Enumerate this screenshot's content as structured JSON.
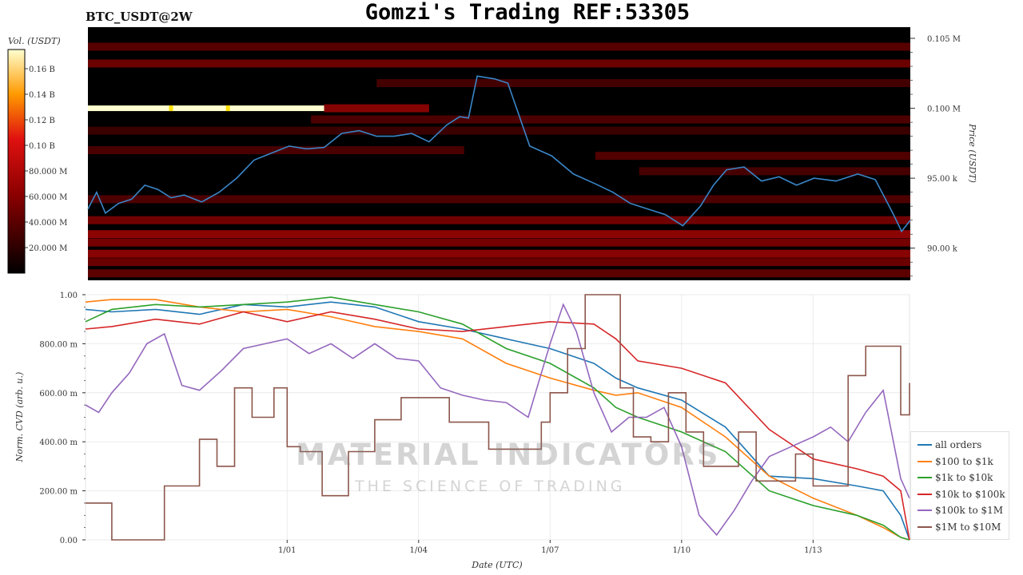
{
  "header": {
    "title": "Gomzi's Trading REF:53305",
    "pair": "BTC_USDT@2W"
  },
  "watermark": {
    "brand": "MATERIAL INDICATORS",
    "tagline": "THE SCIENCE OF TRADING"
  },
  "colors": {
    "price_line": "#3a86c8",
    "all_orders": "#1f77b4",
    "o100_1k": "#ff7f0e",
    "o1k_10k": "#2ca02c",
    "o10k_100k": "#d62728",
    "o100k_1m": "#9467bd",
    "o1m_10m": "#8c564b"
  },
  "chart_data": [
    {
      "type": "heatmap",
      "name": "orderbook-heatmap",
      "colorbar": {
        "label": "Vol. (USDT)",
        "ticks": [
          "0.16 B",
          "0.14 B",
          "0.12 B",
          "0.10 B",
          "80.000 M",
          "60.000 M",
          "40.000 M",
          "20.000 M"
        ],
        "tick_values": [
          160000000,
          140000000,
          120000000,
          100000000,
          80000000,
          60000000,
          40000000,
          20000000
        ],
        "range": [
          0,
          175000000
        ]
      },
      "y_axis": {
        "label": "Price (USDT)",
        "ticks": [
          "0.105 M",
          "0.100 M",
          "95.00 k",
          "90.00 k"
        ],
        "tick_values": [
          105000,
          100000,
          95000,
          90000
        ],
        "range": [
          87700,
          105800
        ]
      },
      "x_range": [
        -4.6,
        14.2
      ],
      "bands": [
        {
          "price": 104400,
          "x0": -4.6,
          "x1": 14.2,
          "vol": 45000000
        },
        {
          "price": 103200,
          "x0": -4.6,
          "x1": 14.2,
          "vol": 55000000
        },
        {
          "price": 101800,
          "x0": 2.0,
          "x1": 14.2,
          "vol": 35000000
        },
        {
          "price": 100000,
          "x0": -4.6,
          "x1": 0.8,
          "vol": 175000000
        },
        {
          "price": 100000,
          "x0": 0.8,
          "x1": 3.2,
          "vol": 70000000
        },
        {
          "price": 99200,
          "x0": 0.5,
          "x1": 14.2,
          "vol": 40000000
        },
        {
          "price": 98400,
          "x0": -4.6,
          "x1": 14.2,
          "vol": 30000000
        },
        {
          "price": 97000,
          "x0": -4.6,
          "x1": 4.0,
          "vol": 38000000
        },
        {
          "price": 96600,
          "x0": 7.0,
          "x1": 14.2,
          "vol": 42000000
        },
        {
          "price": 95500,
          "x0": 8.0,
          "x1": 14.2,
          "vol": 36000000
        },
        {
          "price": 93500,
          "x0": -4.6,
          "x1": 14.2,
          "vol": 40000000
        },
        {
          "price": 92000,
          "x0": -4.6,
          "x1": 14.2,
          "vol": 58000000
        },
        {
          "price": 91000,
          "x0": -4.6,
          "x1": 14.2,
          "vol": 75000000
        },
        {
          "price": 90400,
          "x0": -4.6,
          "x1": 14.2,
          "vol": 60000000
        },
        {
          "price": 89600,
          "x0": -4.6,
          "x1": 14.2,
          "vol": 72000000
        },
        {
          "price": 89000,
          "x0": -4.6,
          "x1": 14.2,
          "vol": 55000000
        },
        {
          "price": 88200,
          "x0": -4.6,
          "x1": 14.2,
          "vol": 48000000
        }
      ],
      "hot_spots": [
        {
          "price": 100000,
          "x": -2.7,
          "vol": 175000000
        },
        {
          "price": 100000,
          "x": -1.4,
          "vol": 150000000
        }
      ],
      "price_series": {
        "x": [
          -4.6,
          -4.4,
          -4.2,
          -3.9,
          -3.6,
          -3.3,
          -3.0,
          -2.7,
          -2.4,
          -2.0,
          -1.6,
          -1.2,
          -0.8,
          -0.4,
          0.0,
          0.4,
          0.8,
          1.2,
          1.6,
          2.0,
          2.4,
          2.8,
          3.2,
          3.6,
          3.9,
          4.1,
          4.3,
          4.7,
          5.0,
          5.5,
          6.0,
          6.5,
          7.0,
          7.4,
          7.8,
          8.2,
          8.6,
          9.0,
          9.4,
          9.7,
          10.0,
          10.4,
          10.8,
          11.2,
          11.6,
          12.0,
          12.5,
          13.0,
          13.4,
          13.8,
          14.0,
          14.2
        ],
        "y": [
          92800,
          94000,
          92500,
          93200,
          93500,
          94500,
          94200,
          93600,
          93800,
          93300,
          94000,
          95000,
          96300,
          96800,
          97300,
          97100,
          97200,
          98200,
          98400,
          98000,
          98000,
          98200,
          97600,
          98800,
          99400,
          99300,
          102300,
          102100,
          101800,
          97300,
          96600,
          95300,
          94600,
          94000,
          93200,
          92800,
          92400,
          91600,
          93000,
          94500,
          95600,
          95800,
          94800,
          95100,
          94500,
          95000,
          94800,
          95300,
          94900,
          92500,
          91200,
          92000
        ]
      }
    },
    {
      "type": "line",
      "name": "normalized-cvd",
      "ylabel": "Norm. CVD (arb. u.)",
      "xlabel": "Date (UTC)",
      "ylim": [
        0,
        1
      ],
      "xlim": [
        -4.6,
        14.2
      ],
      "x_ticks": [
        "1/01",
        "1/04",
        "1/07",
        "1/10",
        "1/13"
      ],
      "x_tick_values": [
        0,
        3,
        6,
        9,
        12
      ],
      "y_ticks": [
        "1.00",
        "800.00 m",
        "600.00 m",
        "400.00 m",
        "200.00 m",
        "0.00"
      ],
      "y_tick_values": [
        1.0,
        0.8,
        0.6,
        0.4,
        0.2,
        0.0
      ],
      "series": [
        {
          "name": "all orders",
          "color_key": "all_orders",
          "x": [
            -4.6,
            -4.0,
            -3.0,
            -2.0,
            -1.0,
            0.0,
            1.0,
            2.0,
            3.0,
            4.0,
            5.0,
            6.0,
            7.0,
            7.5,
            8.0,
            9.0,
            10.0,
            11.0,
            12.0,
            13.0,
            13.6,
            14.0,
            14.2
          ],
          "y": [
            0.94,
            0.93,
            0.94,
            0.92,
            0.96,
            0.95,
            0.97,
            0.95,
            0.89,
            0.86,
            0.82,
            0.78,
            0.72,
            0.66,
            0.62,
            0.57,
            0.46,
            0.26,
            0.25,
            0.22,
            0.2,
            0.1,
            0.0
          ]
        },
        {
          "name": "$100 to $1k",
          "color_key": "o100_1k",
          "x": [
            -4.6,
            -4.0,
            -3.0,
            -2.0,
            -1.0,
            0.0,
            1.0,
            2.0,
            3.0,
            4.0,
            5.0,
            6.0,
            7.0,
            7.5,
            8.0,
            9.0,
            10.0,
            11.0,
            12.0,
            13.0,
            13.6,
            14.0,
            14.2
          ],
          "y": [
            0.97,
            0.98,
            0.98,
            0.95,
            0.93,
            0.94,
            0.91,
            0.87,
            0.85,
            0.82,
            0.72,
            0.66,
            0.61,
            0.59,
            0.6,
            0.54,
            0.42,
            0.26,
            0.17,
            0.1,
            0.05,
            0.01,
            0.0
          ]
        },
        {
          "name": "$1k to $10k",
          "color_key": "o1k_10k",
          "x": [
            -4.6,
            -4.0,
            -3.0,
            -2.0,
            -1.0,
            0.0,
            1.0,
            2.0,
            3.0,
            4.0,
            5.0,
            6.0,
            7.0,
            7.5,
            8.0,
            9.0,
            10.0,
            11.0,
            12.0,
            13.0,
            13.6,
            14.0,
            14.2
          ],
          "y": [
            0.89,
            0.94,
            0.96,
            0.95,
            0.96,
            0.97,
            0.99,
            0.96,
            0.93,
            0.88,
            0.78,
            0.72,
            0.62,
            0.54,
            0.5,
            0.44,
            0.36,
            0.2,
            0.14,
            0.1,
            0.06,
            0.01,
            0.0
          ]
        },
        {
          "name": "$10k to $100k",
          "color_key": "o10k_100k",
          "x": [
            -4.6,
            -4.0,
            -3.0,
            -2.0,
            -1.0,
            0.0,
            1.0,
            2.0,
            3.0,
            4.0,
            5.0,
            6.0,
            7.0,
            7.5,
            8.0,
            9.0,
            10.0,
            11.0,
            12.0,
            13.0,
            13.6,
            14.0,
            14.2
          ],
          "y": [
            0.86,
            0.87,
            0.9,
            0.88,
            0.93,
            0.89,
            0.93,
            0.9,
            0.86,
            0.85,
            0.87,
            0.89,
            0.88,
            0.82,
            0.73,
            0.7,
            0.64,
            0.45,
            0.33,
            0.29,
            0.26,
            0.2,
            0.0
          ]
        },
        {
          "name": "$100k to $1M",
          "color_key": "o100k_1m",
          "x": [
            -4.6,
            -4.3,
            -4.0,
            -3.6,
            -3.2,
            -2.8,
            -2.4,
            -2.0,
            -1.5,
            -1.0,
            -0.5,
            0.0,
            0.5,
            1.0,
            1.5,
            2.0,
            2.5,
            3.0,
            3.5,
            4.0,
            4.5,
            5.0,
            5.5,
            6.0,
            6.3,
            6.6,
            7.0,
            7.4,
            7.8,
            8.2,
            8.6,
            9.0,
            9.4,
            9.8,
            10.2,
            10.6,
            11.0,
            11.5,
            12.0,
            12.4,
            12.8,
            13.2,
            13.6,
            14.0,
            14.2
          ],
          "y": [
            0.55,
            0.52,
            0.6,
            0.68,
            0.8,
            0.84,
            0.63,
            0.61,
            0.69,
            0.78,
            0.8,
            0.82,
            0.76,
            0.8,
            0.74,
            0.8,
            0.74,
            0.73,
            0.62,
            0.59,
            0.57,
            0.56,
            0.5,
            0.8,
            0.96,
            0.85,
            0.6,
            0.44,
            0.5,
            0.5,
            0.54,
            0.38,
            0.1,
            0.02,
            0.12,
            0.24,
            0.34,
            0.38,
            0.42,
            0.46,
            0.4,
            0.52,
            0.61,
            0.25,
            0.17
          ]
        },
        {
          "name": "$1M to $10M",
          "color_key": "o1m_10m",
          "x": [
            -4.6,
            -4.3,
            -4.0,
            -3.4,
            -2.8,
            -2.2,
            -2.0,
            -1.6,
            -1.2,
            -0.8,
            -0.3,
            0.0,
            0.3,
            0.8,
            1.4,
            2.0,
            2.6,
            3.2,
            3.7,
            4.2,
            4.6,
            5.2,
            5.8,
            6.0,
            6.4,
            6.8,
            7.3,
            7.6,
            7.9,
            8.3,
            8.7,
            9.1,
            9.5,
            9.9,
            10.3,
            10.7,
            11.1,
            11.6,
            12.0,
            12.4,
            12.8,
            13.2,
            13.6,
            14.0,
            14.2
          ],
          "y": [
            0.15,
            0.15,
            0.0,
            0.0,
            0.22,
            0.22,
            0.41,
            0.3,
            0.62,
            0.5,
            0.62,
            0.38,
            0.36,
            0.18,
            0.36,
            0.49,
            0.58,
            0.58,
            0.48,
            0.48,
            0.37,
            0.37,
            0.48,
            0.6,
            0.78,
            1.0,
            1.0,
            0.62,
            0.42,
            0.4,
            0.6,
            0.44,
            0.3,
            0.3,
            0.44,
            0.24,
            0.24,
            0.35,
            0.22,
            0.22,
            0.67,
            0.79,
            0.79,
            0.51,
            0.64
          ]
        }
      ]
    }
  ]
}
